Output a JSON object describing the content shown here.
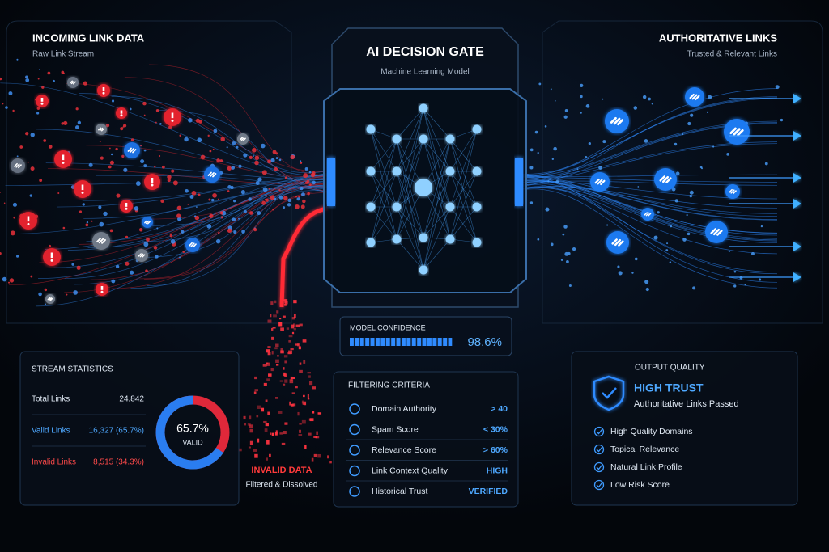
{
  "incoming": {
    "title": "INCOMING LINK DATA",
    "subtitle": "Raw Link Stream"
  },
  "authoritative": {
    "title": "AUTHORITATIVE LINKS",
    "subtitle": "Trusted & Relevant Links"
  },
  "gate": {
    "title": "AI DECISION GATE",
    "subtitle": "Machine Learning Model"
  },
  "model_confidence": {
    "label": "MODEL CONFIDENCE",
    "value": 98.6,
    "value_label": "98.6%"
  },
  "stream_statistics": {
    "title": "STREAM STATISTICS",
    "rows": [
      {
        "label": "Total Links",
        "value": "24,842"
      },
      {
        "label": "Valid Links",
        "value": "16,327 (65.7%)"
      },
      {
        "label": "Invalid Links",
        "value": "8,515 (34.3%)"
      }
    ],
    "donut": {
      "value": 65.7,
      "label": "65.7%",
      "caption": "VALID"
    }
  },
  "invalid": {
    "title": "INVALID DATA",
    "subtitle": "Filtered & Dissolved"
  },
  "filtering_criteria": {
    "title": "FILTERING CRITERIA",
    "rows": [
      {
        "label": "Domain Authority",
        "value": "> 40"
      },
      {
        "label": "Spam Score",
        "value": "< 30%"
      },
      {
        "label": "Relevance Score",
        "value": "> 60%"
      },
      {
        "label": "Link Context Quality",
        "value": "HIGH"
      },
      {
        "label": "Historical Trust",
        "value": "VERIFIED"
      }
    ]
  },
  "output_quality": {
    "title": "OUTPUT QUALITY",
    "status": "HIGH TRUST",
    "subtitle": "Authoritative Links Passed",
    "items": [
      "High Quality Domains",
      "Topical Relevance",
      "Natural Link Profile",
      "Low Risk Score"
    ]
  }
}
